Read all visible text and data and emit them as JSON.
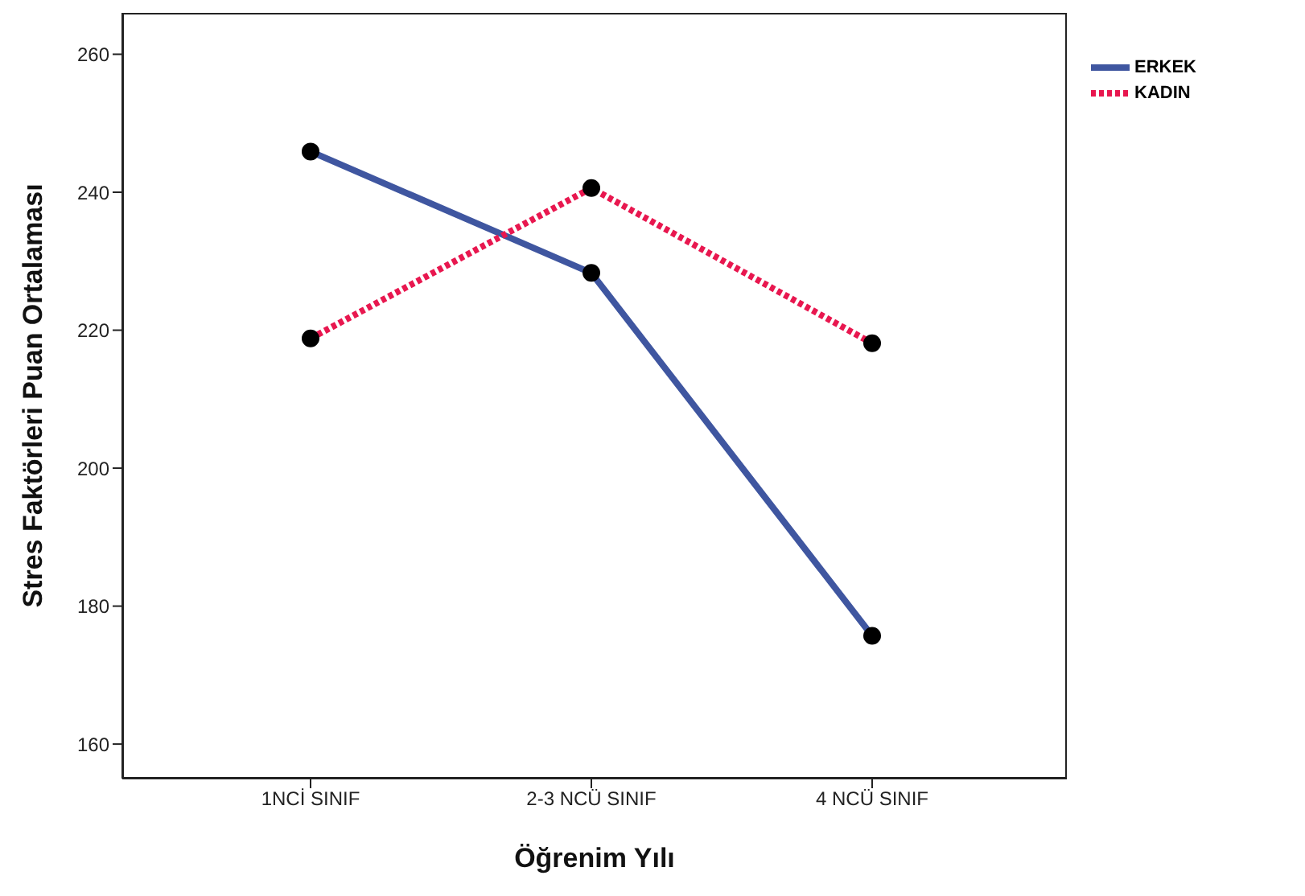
{
  "chart_data": {
    "type": "line",
    "xlabel": "Öğrenim Yılı",
    "ylabel": "Stres Faktörleri Puan Ortalaması",
    "categories": [
      "1NCİ SINIF",
      "2-3 NCÜ SINIF",
      "4 NCÜ SINIF"
    ],
    "series": [
      {
        "name": "ERKEK",
        "color": "#3f56a0",
        "values": [
          245.9,
          228.3,
          175.7
        ],
        "line_style": "solid"
      },
      {
        "name": "KADIN",
        "color": "#e8174f",
        "values": [
          218.8,
          240.6,
          218.1
        ],
        "line_style": "dotted"
      }
    ],
    "ylim": [
      155,
      266
    ],
    "yticks": [
      160,
      180,
      200,
      220,
      240,
      260
    ],
    "legend": "top right",
    "marker": "circle"
  }
}
